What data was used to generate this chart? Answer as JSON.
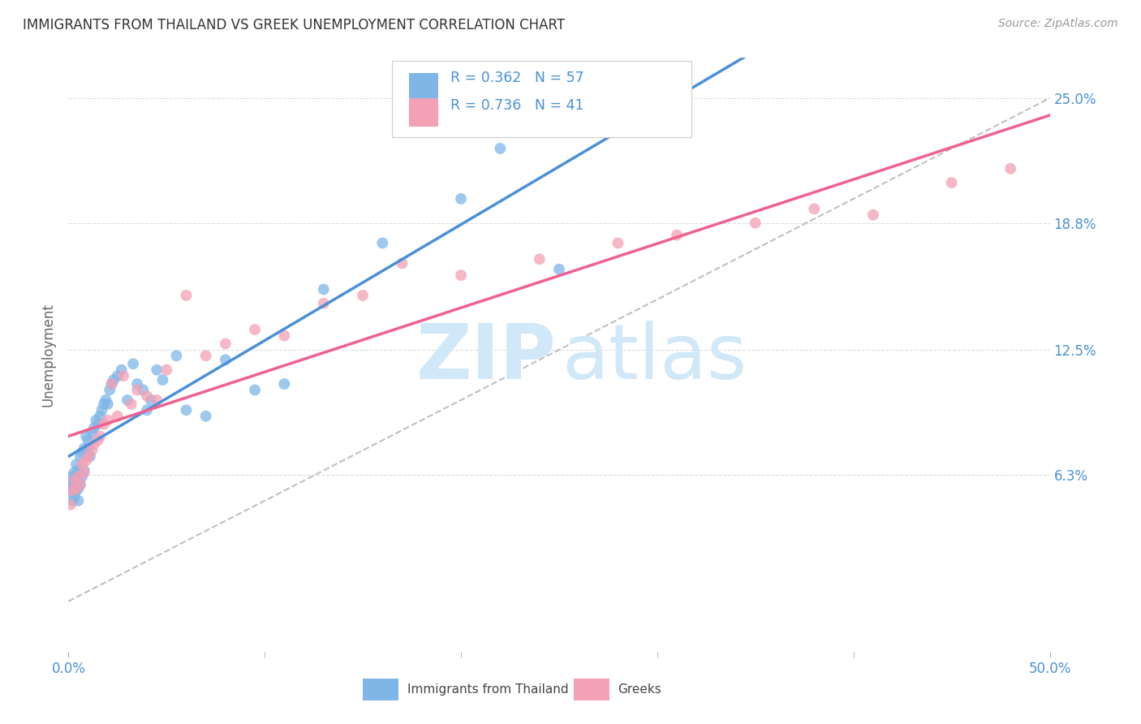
{
  "title": "IMMIGRANTS FROM THAILAND VS GREEK UNEMPLOYMENT CORRELATION CHART",
  "source": "Source: ZipAtlas.com",
  "ylabel": "Unemployment",
  "ytick_labels": [
    "6.3%",
    "12.5%",
    "18.8%",
    "25.0%"
  ],
  "ytick_values": [
    0.063,
    0.125,
    0.188,
    0.25
  ],
  "xtick_minor": [
    0.1,
    0.2,
    0.3,
    0.4
  ],
  "legend_label1": "Immigrants from Thailand",
  "legend_label2": "Greeks",
  "r1": 0.362,
  "n1": 57,
  "r2": 0.736,
  "n2": 41,
  "color_blue": "#7EB6E8",
  "color_pink": "#F4A0B5",
  "color_blue_text": "#4A90D9",
  "line_blue": "#4A90D9",
  "line_pink": "#F06090",
  "watermark_color": "#D0E8F8",
  "xlim": [
    0.0,
    0.5
  ],
  "ylim": [
    -0.025,
    0.27
  ],
  "blue_x": [
    0.001,
    0.001,
    0.002,
    0.002,
    0.002,
    0.003,
    0.003,
    0.003,
    0.004,
    0.004,
    0.004,
    0.005,
    0.005,
    0.005,
    0.006,
    0.006,
    0.007,
    0.007,
    0.008,
    0.008,
    0.009,
    0.01,
    0.01,
    0.011,
    0.012,
    0.013,
    0.014,
    0.015,
    0.016,
    0.017,
    0.018,
    0.019,
    0.02,
    0.021,
    0.022,
    0.023,
    0.025,
    0.027,
    0.03,
    0.033,
    0.035,
    0.038,
    0.04,
    0.042,
    0.045,
    0.048,
    0.055,
    0.06,
    0.07,
    0.08,
    0.095,
    0.11,
    0.13,
    0.16,
    0.2,
    0.22,
    0.25
  ],
  "blue_y": [
    0.055,
    0.058,
    0.05,
    0.062,
    0.06,
    0.052,
    0.058,
    0.064,
    0.055,
    0.062,
    0.068,
    0.05,
    0.056,
    0.065,
    0.058,
    0.072,
    0.062,
    0.074,
    0.065,
    0.076,
    0.082,
    0.076,
    0.08,
    0.072,
    0.084,
    0.086,
    0.09,
    0.088,
    0.092,
    0.095,
    0.098,
    0.1,
    0.098,
    0.105,
    0.108,
    0.11,
    0.112,
    0.115,
    0.1,
    0.118,
    0.108,
    0.105,
    0.095,
    0.1,
    0.115,
    0.11,
    0.122,
    0.095,
    0.092,
    0.12,
    0.105,
    0.108,
    0.155,
    0.178,
    0.2,
    0.225,
    0.165
  ],
  "pink_x": [
    0.001,
    0.002,
    0.003,
    0.004,
    0.005,
    0.006,
    0.007,
    0.008,
    0.009,
    0.01,
    0.012,
    0.013,
    0.015,
    0.016,
    0.018,
    0.02,
    0.022,
    0.025,
    0.028,
    0.032,
    0.035,
    0.04,
    0.045,
    0.05,
    0.06,
    0.07,
    0.08,
    0.095,
    0.11,
    0.13,
    0.15,
    0.17,
    0.2,
    0.24,
    0.28,
    0.31,
    0.35,
    0.38,
    0.41,
    0.45,
    0.48
  ],
  "pink_y": [
    0.048,
    0.055,
    0.06,
    0.056,
    0.062,
    0.058,
    0.068,
    0.064,
    0.07,
    0.072,
    0.075,
    0.078,
    0.08,
    0.082,
    0.088,
    0.09,
    0.108,
    0.092,
    0.112,
    0.098,
    0.105,
    0.102,
    0.1,
    0.115,
    0.152,
    0.122,
    0.128,
    0.135,
    0.132,
    0.148,
    0.152,
    0.168,
    0.162,
    0.17,
    0.178,
    0.182,
    0.188,
    0.195,
    0.192,
    0.208,
    0.215
  ]
}
